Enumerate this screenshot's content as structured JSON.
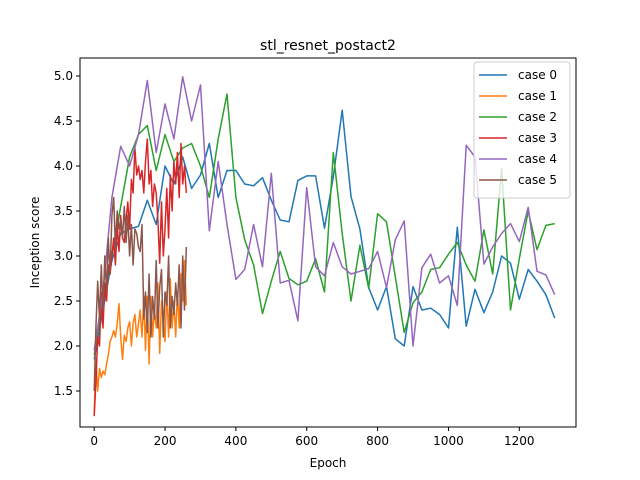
{
  "chart_data": {
    "type": "line",
    "title": "stl_resnet_postact2",
    "xlabel": "Epoch",
    "ylabel": "Inception score",
    "xlim": [
      -40,
      1360
    ],
    "ylim": [
      1.1,
      5.2
    ],
    "xticks": [
      0,
      200,
      400,
      600,
      800,
      1000,
      1200
    ],
    "yticks": [
      1.5,
      2.0,
      2.5,
      3.0,
      3.5,
      4.0,
      4.5,
      5.0
    ],
    "ytick_labels": [
      "1.5",
      "2.0",
      "2.5",
      "3.0",
      "3.5",
      "4.0",
      "4.5",
      "5.0"
    ],
    "grid": false,
    "legend_position": "top-right",
    "series": [
      {
        "name": "case 0",
        "color": "#1f77b4",
        "x": [
          0,
          25,
          50,
          75,
          100,
          125,
          150,
          175,
          200,
          225,
          250,
          275,
          300,
          325,
          350,
          375,
          400,
          425,
          450,
          475,
          500,
          525,
          550,
          575,
          600,
          625,
          650,
          675,
          700,
          725,
          750,
          775,
          800,
          825,
          850,
          875,
          900,
          925,
          950,
          975,
          1000,
          1025,
          1050,
          1075,
          1100,
          1125,
          1150,
          1175,
          1200,
          1225,
          1250,
          1275,
          1300
        ],
        "y": [
          1.85,
          2.4,
          2.95,
          3.25,
          3.3,
          3.33,
          3.62,
          3.35,
          4.0,
          3.8,
          4.1,
          3.75,
          3.9,
          4.25,
          3.65,
          3.95,
          3.95,
          3.8,
          3.78,
          3.87,
          3.62,
          3.4,
          3.38,
          3.84,
          3.89,
          3.89,
          3.31,
          3.88,
          4.62,
          3.66,
          3.3,
          2.65,
          2.4,
          2.66,
          2.08,
          2.0,
          2.66,
          2.4,
          2.42,
          2.35,
          2.2,
          3.32,
          2.22,
          2.63,
          2.37,
          2.6,
          3.0,
          2.92,
          2.52,
          2.85,
          2.72,
          2.57,
          2.31
        ]
      },
      {
        "name": "case 1",
        "color": "#ff7f0e",
        "x": [
          0,
          5,
          10,
          15,
          20,
          25,
          30,
          35,
          40,
          45,
          50,
          55,
          60,
          65,
          70,
          75,
          80,
          85,
          90,
          95,
          100,
          105,
          110,
          115,
          120,
          125,
          130,
          135,
          140,
          145,
          150,
          155,
          160,
          165,
          170,
          175,
          180,
          185,
          190,
          195,
          200,
          205,
          210,
          215,
          220,
          225,
          230,
          235,
          240,
          245,
          250,
          255,
          260
        ],
        "y": [
          1.25,
          1.85,
          1.5,
          1.75,
          1.65,
          1.72,
          1.68,
          1.8,
          1.9,
          2.05,
          2.1,
          2.17,
          2.1,
          2.25,
          2.47,
          2.1,
          1.85,
          2.12,
          2.05,
          2.2,
          2.27,
          2.0,
          2.25,
          2.35,
          2.1,
          2.25,
          2.4,
          2.1,
          2.55,
          1.95,
          2.55,
          1.8,
          2.55,
          2.1,
          2.4,
          2.2,
          2.7,
          1.92,
          2.5,
          2.3,
          2.05,
          2.6,
          2.1,
          2.75,
          2.2,
          2.5,
          2.1,
          2.6,
          2.2,
          2.8,
          2.5,
          2.95,
          2.45
        ]
      },
      {
        "name": "case 2",
        "color": "#2ca02c",
        "x": [
          0,
          25,
          50,
          75,
          100,
          125,
          150,
          175,
          200,
          225,
          250,
          275,
          300,
          325,
          350,
          375,
          400,
          425,
          450,
          475,
          500,
          525,
          550,
          575,
          600,
          625,
          650,
          675,
          700,
          725,
          750,
          775,
          800,
          825,
          850,
          875,
          900,
          925,
          950,
          975,
          1000,
          1025,
          1050,
          1075,
          1100,
          1125,
          1150,
          1175,
          1200,
          1225,
          1250,
          1275,
          1300
        ],
        "y": [
          1.9,
          2.5,
          3.0,
          3.55,
          4.1,
          4.35,
          4.45,
          3.95,
          4.35,
          4.05,
          4.2,
          4.25,
          4.0,
          3.65,
          4.3,
          4.8,
          3.65,
          3.18,
          2.9,
          2.36,
          2.72,
          3.05,
          2.75,
          2.68,
          2.72,
          2.97,
          2.6,
          4.15,
          3.25,
          2.5,
          3.12,
          2.64,
          3.47,
          3.38,
          2.77,
          2.15,
          2.48,
          2.6,
          2.85,
          2.87,
          3.02,
          3.15,
          2.9,
          2.72,
          3.29,
          2.8,
          3.97,
          2.4,
          2.97,
          3.5,
          3.07,
          3.34,
          3.36
        ]
      },
      {
        "name": "case 3",
        "color": "#d62728",
        "x": [
          0,
          5,
          10,
          15,
          20,
          25,
          30,
          35,
          40,
          45,
          50,
          55,
          60,
          65,
          70,
          75,
          80,
          85,
          90,
          95,
          100,
          105,
          110,
          115,
          120,
          125,
          130,
          135,
          140,
          145,
          150,
          155,
          160,
          165,
          170,
          175,
          180,
          185,
          190,
          195,
          200,
          205,
          210,
          215,
          220,
          225,
          230,
          235,
          240,
          245,
          250,
          255,
          260
        ],
        "y": [
          1.22,
          1.6,
          2.1,
          2.0,
          2.6,
          2.2,
          2.7,
          2.5,
          2.9,
          2.8,
          3.0,
          3.2,
          2.9,
          3.35,
          3.05,
          3.45,
          3.2,
          3.15,
          3.4,
          3.6,
          3.3,
          3.85,
          3.7,
          4.2,
          3.9,
          4.0,
          3.85,
          3.95,
          3.7,
          4.05,
          4.3,
          3.8,
          3.95,
          3.55,
          3.8,
          3.7,
          3.4,
          2.92,
          3.6,
          3.0,
          3.3,
          3.75,
          3.2,
          3.9,
          3.5,
          4.05,
          3.8,
          4.15,
          3.65,
          4.25,
          3.8,
          4.0,
          3.7
        ]
      },
      {
        "name": "case 4",
        "color": "#9467bd",
        "x": [
          0,
          25,
          50,
          75,
          100,
          125,
          150,
          175,
          200,
          225,
          250,
          275,
          300,
          325,
          350,
          375,
          400,
          425,
          450,
          475,
          500,
          525,
          550,
          575,
          600,
          625,
          650,
          675,
          700,
          725,
          750,
          775,
          800,
          825,
          850,
          875,
          900,
          925,
          950,
          975,
          1000,
          1025,
          1050,
          1075,
          1100,
          1125,
          1150,
          1175,
          1200,
          1225,
          1250,
          1275,
          1300
        ],
        "y": [
          1.95,
          2.6,
          3.65,
          4.22,
          4.0,
          4.35,
          4.95,
          4.15,
          4.69,
          4.3,
          4.99,
          4.5,
          4.9,
          3.28,
          4.05,
          3.35,
          2.74,
          2.85,
          3.35,
          2.88,
          3.92,
          2.7,
          2.73,
          2.28,
          3.76,
          2.88,
          2.78,
          3.15,
          2.88,
          2.8,
          2.83,
          2.86,
          3.05,
          2.65,
          3.18,
          3.39,
          2.0,
          2.87,
          3.02,
          2.7,
          2.78,
          2.45,
          4.23,
          4.1,
          2.91,
          3.1,
          3.25,
          3.36,
          3.16,
          3.54,
          2.83,
          2.79,
          2.57
        ]
      },
      {
        "name": "case 5",
        "color": "#8c564b",
        "x": [
          0,
          5,
          10,
          15,
          20,
          25,
          30,
          35,
          40,
          45,
          50,
          55,
          60,
          65,
          70,
          75,
          80,
          85,
          90,
          95,
          100,
          105,
          110,
          115,
          120,
          125,
          130,
          135,
          140,
          145,
          150,
          155,
          160,
          165,
          170,
          175,
          180,
          185,
          190,
          195,
          200,
          205,
          210,
          215,
          220,
          225,
          230,
          235,
          240,
          245,
          250,
          255,
          260
        ],
        "y": [
          1.5,
          2.2,
          2.72,
          2.3,
          2.9,
          2.4,
          3.0,
          2.6,
          3.2,
          2.8,
          3.45,
          3.65,
          3.1,
          3.5,
          3.3,
          3.4,
          3.2,
          3.55,
          3.15,
          3.45,
          3.0,
          3.35,
          2.9,
          3.3,
          3.25,
          3.1,
          3.05,
          3.35,
          2.3,
          2.6,
          2.15,
          2.8,
          2.1,
          2.55,
          2.3,
          2.95,
          2.2,
          2.65,
          2.85,
          2.1,
          2.6,
          2.45,
          3.0,
          2.2,
          2.55,
          2.35,
          2.7,
          2.45,
          2.9,
          2.2,
          3.0,
          2.4,
          3.1
        ]
      }
    ]
  }
}
